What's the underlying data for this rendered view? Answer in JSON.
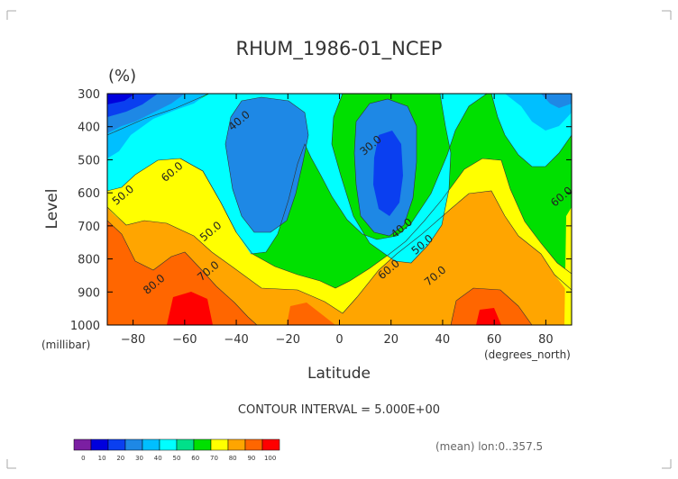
{
  "chart_data": {
    "type": "contour",
    "title": "RHUM_1986-01_NCEP",
    "units": "(%)",
    "xlabel": "Latitude",
    "ylabel": "Level",
    "x_unit_label": "(degrees_north)",
    "y_unit_label": "(millibar)",
    "xlim": [
      -90,
      90
    ],
    "ylim": [
      1000,
      300
    ],
    "x_ticks": [
      -80,
      -60,
      -40,
      -20,
      0,
      20,
      40,
      60,
      80
    ],
    "x_tick_labels": [
      "−80",
      "−60",
      "−40",
      "−20",
      "0",
      "20",
      "40",
      "60",
      "80"
    ],
    "y_ticks": [
      300,
      400,
      500,
      600,
      700,
      800,
      900,
      1000
    ],
    "y_tick_labels": [
      "300",
      "400",
      "500",
      "600",
      "700",
      "800",
      "900",
      "1000"
    ],
    "contour_interval_text": "CONTOUR INTERVAL = 5.000E+00",
    "footnote": "(mean) lon:0..357.5",
    "levels": [
      0,
      10,
      20,
      30,
      40,
      50,
      60,
      70,
      80,
      90,
      100
    ],
    "colorbar": {
      "labels": [
        "0",
        "10",
        "20",
        "30",
        "40",
        "50",
        "60",
        "70",
        "80",
        "90",
        "100"
      ],
      "colors": [
        "#7b1fa2",
        "#0000dd",
        "#0a3ff0",
        "#1e88e5",
        "#00bfff",
        "#00ffff",
        "#00e08a",
        "#00e000",
        "#ffff00",
        "#ffa500",
        "#ff6600",
        "#ff0000"
      ]
    },
    "contour_labels": [
      {
        "text": "50.0",
        "lat": -83,
        "level": 615
      },
      {
        "text": "60.0",
        "lat": -64,
        "level": 545
      },
      {
        "text": "80.0",
        "lat": -71,
        "level": 885
      },
      {
        "text": "70.0",
        "lat": -50,
        "level": 845
      },
      {
        "text": "50.0",
        "lat": -49,
        "level": 725
      },
      {
        "text": "40.0",
        "lat": -38,
        "level": 390
      },
      {
        "text": "30.0",
        "lat": 13,
        "level": 465
      },
      {
        "text": "40.0",
        "lat": 25,
        "level": 715
      },
      {
        "text": "50.0",
        "lat": 33,
        "level": 765
      },
      {
        "text": "60.0",
        "lat": 20,
        "level": 840
      },
      {
        "text": "70.0",
        "lat": 38,
        "level": 860
      },
      {
        "text": "60.0",
        "lat": 87,
        "level": 620
      }
    ]
  }
}
